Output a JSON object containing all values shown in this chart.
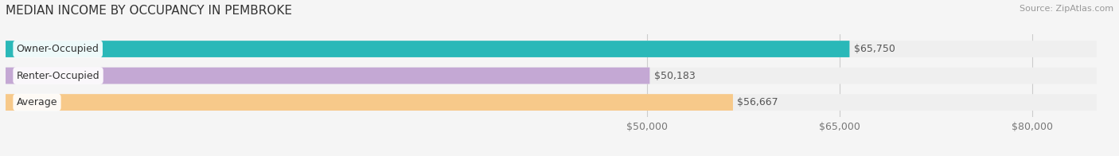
{
  "title": "MEDIAN INCOME BY OCCUPANCY IN PEMBROKE",
  "source": "Source: ZipAtlas.com",
  "categories": [
    "Owner-Occupied",
    "Renter-Occupied",
    "Average"
  ],
  "values": [
    65750,
    50183,
    56667
  ],
  "labels": [
    "$65,750",
    "$50,183",
    "$56,667"
  ],
  "bar_colors": [
    "#2ab8b8",
    "#c4a8d4",
    "#f7c98a"
  ],
  "bar_bg_color": "#e8e8e8",
  "xlim_min": 0,
  "xlim_max": 85000,
  "xticks": [
    50000,
    65000,
    80000
  ],
  "xtick_labels": [
    "$50,000",
    "$65,000",
    "$80,000"
  ],
  "title_fontsize": 11,
  "source_fontsize": 8,
  "tick_fontsize": 9,
  "bar_label_fontsize": 9,
  "cat_label_fontsize": 9,
  "background_color": "#f5f5f5",
  "bar_height": 0.62,
  "row_bg_color": "#efefef"
}
